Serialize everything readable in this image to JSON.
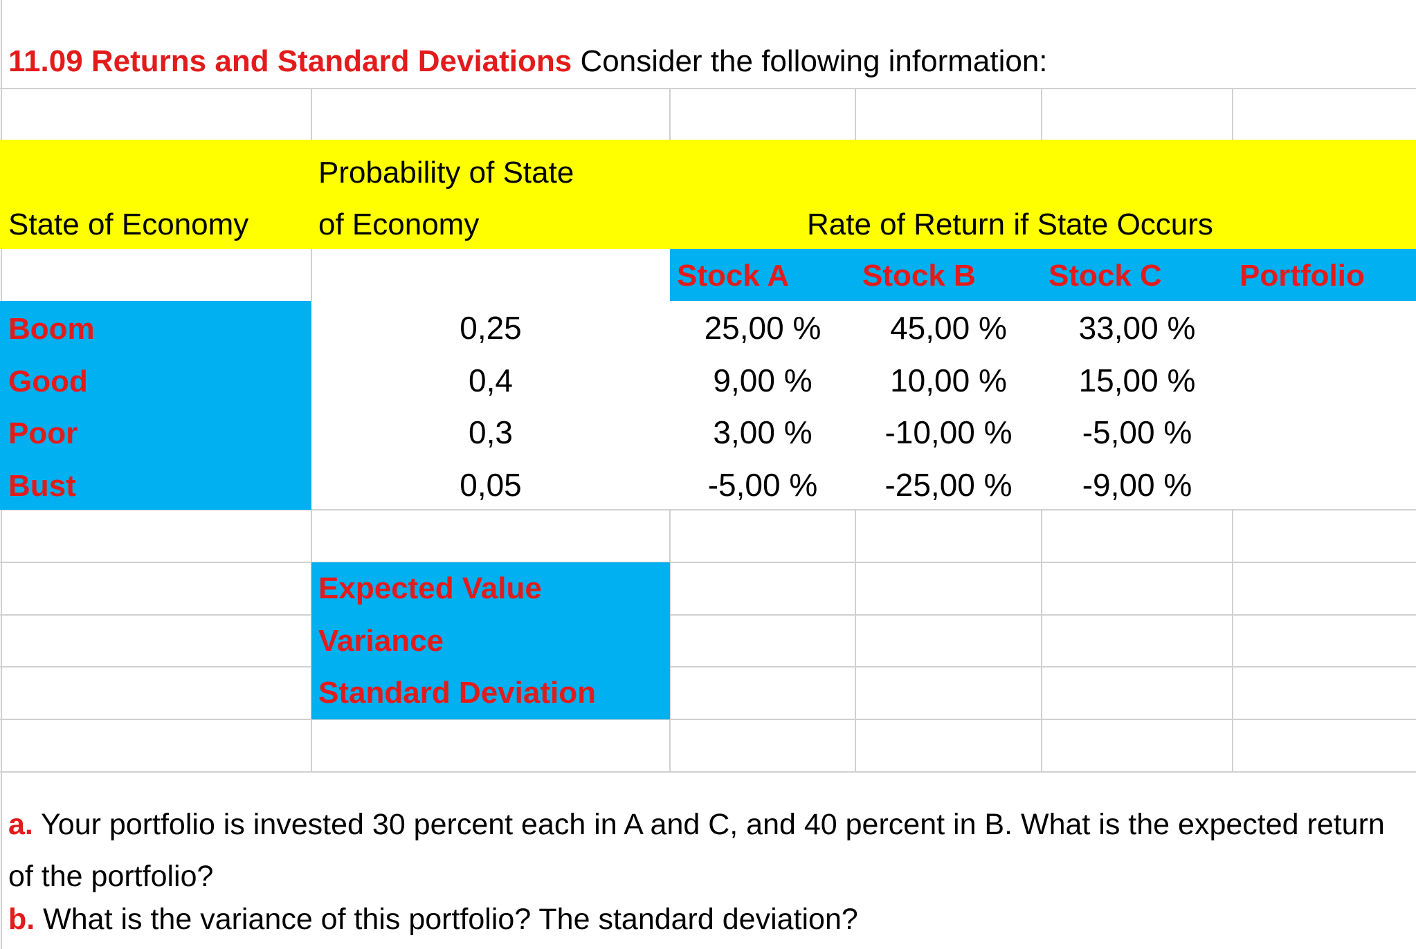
{
  "header": {
    "title_bold": "11.09 Returns and Standard Deviations",
    "title_rest": "Consider the following information:"
  },
  "table": {
    "col_state": "State of Economy",
    "col_prob_line1": "Probability of State",
    "col_prob_line2": "of Economy",
    "col_rate": "Rate of Return if State Occurs",
    "stocks": [
      "Stock A",
      "Stock B",
      "Stock C",
      "Portfolio"
    ],
    "rows": [
      {
        "state": "Boom",
        "prob": "0,25",
        "returns": [
          "25,00 %",
          "45,00 %",
          "33,00 %"
        ]
      },
      {
        "state": "Good",
        "prob": "0,4",
        "returns": [
          "9,00 %",
          "10,00 %",
          "15,00 %"
        ]
      },
      {
        "state": "Poor",
        "prob": "0,3",
        "returns": [
          "3,00 %",
          "-10,00 %",
          "-5,00 %"
        ]
      },
      {
        "state": "Bust",
        "prob": "0,05",
        "returns": [
          "-5,00 %",
          "-25,00 %",
          "-9,00 %"
        ]
      }
    ],
    "stats": [
      "Expected Value",
      "Variance",
      "Standard Deviation"
    ]
  },
  "questions": [
    {
      "label": "a.",
      "text": "Your portfolio is invested 30 percent each in A and C, and 40 percent in B. What is the expected return of the portfolio?"
    },
    {
      "label": "b.",
      "text": "What is the variance of this portfolio? The standard deviation?"
    }
  ]
}
